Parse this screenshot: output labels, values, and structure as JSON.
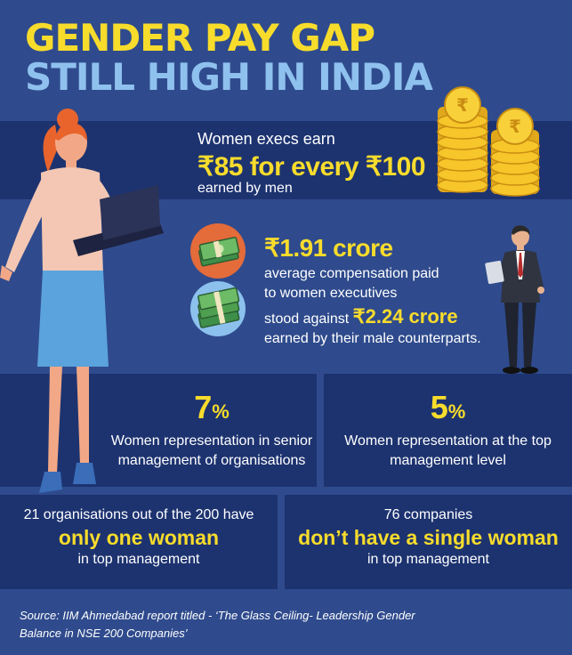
{
  "title": {
    "line1": "GENDER PAY GAP",
    "line2": "STILL HIGH IN INDIA"
  },
  "earnings": {
    "pre": "Women execs earn",
    "main": "₹85 for every ₹100",
    "post": "earned by men"
  },
  "compensation": {
    "women_amount": "₹1.91 crore",
    "desc_line1": "average compensation paid",
    "desc_line2": "to women executives",
    "stood": "stood against ",
    "men_amount": "₹2.24 crore",
    "counterparts": "earned by their male counterparts."
  },
  "senior": {
    "pct": "7",
    "pct_sign": "%",
    "line1": "Women representation in senior",
    "line2": "management of organisations"
  },
  "top": {
    "pct": "5",
    "pct_sign": "%",
    "line1": "Women representation at the top",
    "line2": "management level"
  },
  "one_woman": {
    "pre": "21 organisations out of the 200 have",
    "main": "only one woman",
    "post": "in top management"
  },
  "no_woman": {
    "pre": "76  companies",
    "main": "don’t have a single woman",
    "post": "in top management"
  },
  "source": {
    "line1": "Source: IIM Ahmedabad report titled -  ‘The Glass Ceiling- Leadership Gender",
    "line2": "Balance in NSE 200 Companies’"
  },
  "colors": {
    "background": "#2f4b8d",
    "panel": "#1d3370",
    "accent_yellow": "#f8dc2c",
    "accent_blue": "#8fc1ee"
  },
  "icons": [
    "rupee-coin-stack-icon",
    "money-stack-icon",
    "woman-executive-illustration",
    "man-executive-illustration"
  ]
}
